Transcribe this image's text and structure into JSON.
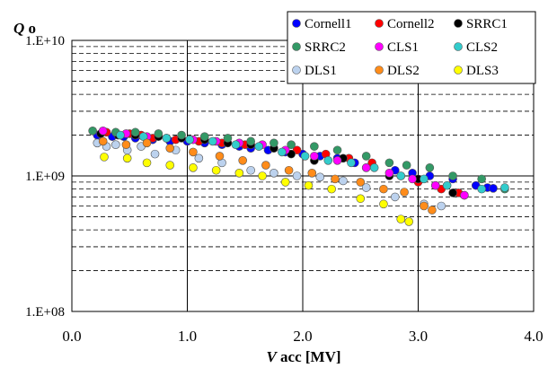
{
  "chart_data": {
    "type": "scatter",
    "title": "",
    "ylabel_italic": "Q",
    "ylabel_rest": " o",
    "xlabel_italic": "V",
    "xlabel_rest": " acc [MV]",
    "y_scale": "log",
    "xlim": [
      0,
      4
    ],
    "ylim": [
      100000000,
      10000000000
    ],
    "x_ticks": [
      0,
      1,
      2,
      3,
      4
    ],
    "x_tick_labels": [
      "0.0",
      "1.0",
      "2.0",
      "3.0",
      "4.0"
    ],
    "y_ticks": [
      100000000,
      1000000000,
      10000000000
    ],
    "y_tick_labels": [
      "1.E+08",
      "1.E+09",
      "1.E+10"
    ],
    "grid": {
      "major_vertical": true,
      "major_horizontal": true,
      "minor_horizontal_dashed": true
    },
    "legend_position": "top-right",
    "series": [
      {
        "name": "Cornell1",
        "color": "#0000ff",
        "x": [
          0.22,
          0.35,
          0.45,
          0.55,
          0.7,
          0.85,
          1.0,
          1.15,
          1.3,
          1.45,
          1.55,
          1.7,
          1.85,
          2.0,
          2.15,
          2.3,
          2.45,
          2.6,
          2.8,
          2.95,
          3.1,
          3.3,
          3.5,
          3.6,
          3.65
        ],
        "y": [
          2000000000,
          1950000000,
          1950000000,
          1900000000,
          1850000000,
          1800000000,
          1800000000,
          1750000000,
          1700000000,
          1650000000,
          1600000000,
          1550000000,
          1500000000,
          1450000000,
          1400000000,
          1350000000,
          1250000000,
          1200000000,
          1100000000,
          1050000000,
          1000000000,
          950000000,
          850000000,
          820000000,
          810000000
        ]
      },
      {
        "name": "Cornell2",
        "color": "#ff0000",
        "x": [
          0.3,
          0.5,
          0.6,
          0.7,
          0.9,
          1.1,
          1.3,
          1.5,
          1.75,
          1.95,
          2.2,
          2.4,
          2.6,
          2.85,
          3.0,
          3.2,
          3.35
        ],
        "y": [
          2100000000,
          2050000000,
          2000000000,
          1900000000,
          1850000000,
          1800000000,
          1750000000,
          1700000000,
          1600000000,
          1550000000,
          1450000000,
          1350000000,
          1250000000,
          1000000000,
          900000000,
          800000000,
          750000000
        ]
      },
      {
        "name": "SRRC1",
        "color": "#000000",
        "x": [
          0.25,
          0.4,
          0.55,
          0.75,
          0.95,
          1.15,
          1.35,
          1.55,
          1.75,
          1.9,
          2.1,
          2.35,
          2.55,
          2.75,
          3.0,
          3.15,
          3.3,
          3.4
        ],
        "y": [
          2050000000,
          2000000000,
          2000000000,
          1950000000,
          1900000000,
          1850000000,
          1750000000,
          1700000000,
          1600000000,
          1450000000,
          1300000000,
          1350000000,
          1150000000,
          1000000000,
          950000000,
          850000000,
          750000000,
          720000000
        ]
      },
      {
        "name": "SRRC2",
        "color": "#339966",
        "x": [
          0.18,
          0.38,
          0.55,
          0.75,
          0.95,
          1.15,
          1.35,
          1.55,
          1.75,
          1.9,
          2.1,
          2.3,
          2.55,
          2.75,
          2.9,
          3.1,
          3.3,
          3.55,
          3.75
        ],
        "y": [
          2150000000,
          2100000000,
          2100000000,
          2050000000,
          2000000000,
          1950000000,
          1900000000,
          1800000000,
          1750000000,
          1700000000,
          1650000000,
          1550000000,
          1400000000,
          1250000000,
          1200000000,
          1150000000,
          1000000000,
          950000000,
          800000000
        ]
      },
      {
        "name": "CLS1",
        "color": "#ff00ff",
        "x": [
          0.27,
          0.47,
          0.65,
          0.82,
          1.05,
          1.25,
          1.45,
          1.65,
          1.85,
          2.1,
          2.3,
          2.55,
          2.75,
          2.95,
          3.15,
          3.4
        ],
        "y": [
          2150000000,
          2050000000,
          1950000000,
          1900000000,
          1850000000,
          1800000000,
          1750000000,
          1700000000,
          1550000000,
          1400000000,
          1300000000,
          1150000000,
          1050000000,
          950000000,
          850000000,
          720000000
        ]
      },
      {
        "name": "CLS2",
        "color": "#33cccc",
        "x": [
          0.42,
          0.62,
          0.82,
          1.02,
          1.22,
          1.42,
          1.62,
          1.82,
          2.02,
          2.22,
          2.42,
          2.62,
          2.85,
          3.05,
          3.25,
          3.55,
          3.75
        ],
        "y": [
          2000000000,
          1950000000,
          1900000000,
          1850000000,
          1800000000,
          1700000000,
          1650000000,
          1500000000,
          1400000000,
          1300000000,
          1250000000,
          1150000000,
          1000000000,
          950000000,
          850000000,
          800000000,
          820000000
        ]
      },
      {
        "name": "DLS1",
        "color": "#bcd2ee",
        "x": [
          0.22,
          0.3,
          0.38,
          0.48,
          0.6,
          0.72,
          0.9,
          1.1,
          1.3,
          1.55,
          1.75,
          1.95,
          2.15,
          2.35,
          2.55,
          2.8,
          3.05,
          3.2
        ],
        "y": [
          1750000000,
          1650000000,
          1700000000,
          1550000000,
          1650000000,
          1450000000,
          1550000000,
          1350000000,
          1250000000,
          1100000000,
          1050000000,
          1000000000,
          980000000,
          920000000,
          820000000,
          700000000,
          620000000,
          600000000
        ]
      },
      {
        "name": "DLS2",
        "color": "#ff8c1a",
        "x": [
          0.27,
          0.47,
          0.65,
          0.85,
          1.05,
          1.28,
          1.48,
          1.68,
          1.88,
          2.08,
          2.28,
          2.5,
          2.7,
          2.88,
          3.05,
          3.12
        ],
        "y": [
          1800000000,
          1700000000,
          1750000000,
          1600000000,
          1500000000,
          1400000000,
          1300000000,
          1200000000,
          1100000000,
          1050000000,
          950000000,
          900000000,
          800000000,
          760000000,
          600000000,
          560000000
        ]
      },
      {
        "name": "DLS3",
        "color": "#ffff00",
        "x": [
          0.28,
          0.48,
          0.65,
          0.85,
          1.05,
          1.25,
          1.45,
          1.65,
          1.85,
          2.05,
          2.25,
          2.5,
          2.7,
          2.85,
          2.92
        ],
        "y": [
          1380000000,
          1350000000,
          1250000000,
          1200000000,
          1150000000,
          1100000000,
          1050000000,
          1000000000,
          900000000,
          850000000,
          800000000,
          680000000,
          620000000,
          480000000,
          460000000
        ]
      }
    ]
  }
}
